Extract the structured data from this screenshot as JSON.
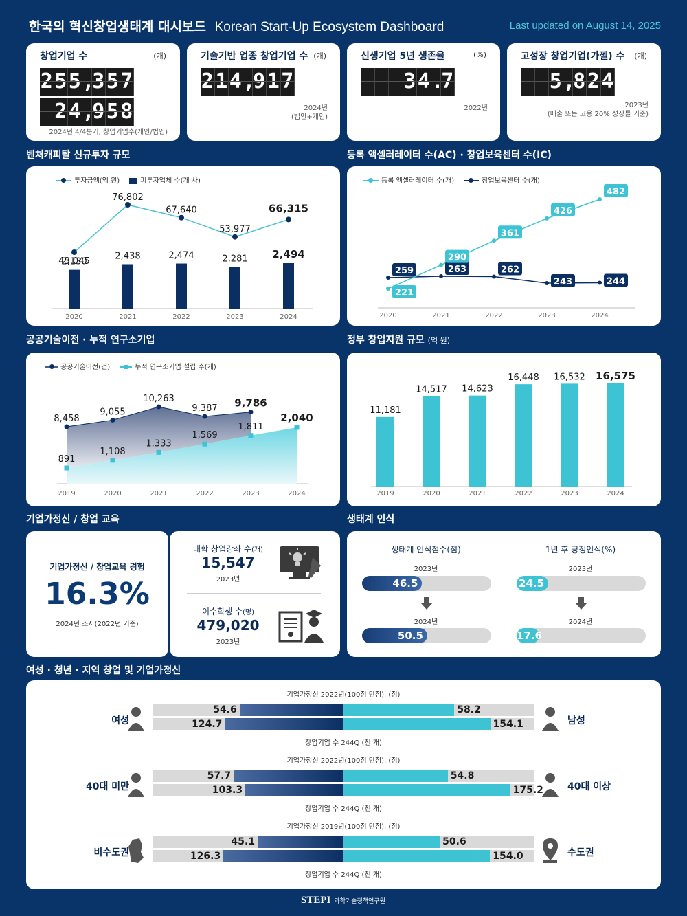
{
  "header": {
    "title_ko": "한국의 혁신창업생태계 대시보드",
    "title_en": "Korean Start-Up Ecosystem Dashboard",
    "updated": "Last updated on August 14, 2025"
  },
  "kpis": [
    {
      "title": "창업기업 수",
      "unit": "(개)",
      "value1": "255,357",
      "value2": "24,958",
      "note": "2024년 4/4분기, 창업기업수(개인/법인)"
    },
    {
      "title": "기술기반 업종 창업기업 수",
      "unit": "(개)",
      "value1": "214,917",
      "note": "2024년\n(법인+개인)"
    },
    {
      "title": "신생기업 5년 생존율",
      "unit": "(%)",
      "value1": "34.7",
      "note": "2022년"
    },
    {
      "title": "고성장 창업기업(가젤) 수",
      "unit": "(개)",
      "value1": "5,824",
      "note": "2023년\n(매출 또는 고용 20% 성장률 기준)"
    }
  ],
  "sections": {
    "vc": "벤처캐피탈 신규투자 규모",
    "ac": "등록 액셀러레이터 수(AC) · 창업보육센터 수(IC)",
    "tech": "공공기술이전 · 누적 연구소기업",
    "gov": "정부 창업지원 규모",
    "gov_unit": "(억 원)",
    "edu": "기업가정신 / 창업 교육",
    "eco": "생태계 인식",
    "demo": "여성 · 청년 · 지역 창업 및 기업가정신"
  },
  "chart_data": [
    {
      "id": "vc",
      "type": "bar",
      "categories": [
        "2020",
        "2021",
        "2022",
        "2023",
        "2024"
      ],
      "series": [
        {
          "name": "투자금액(억 원)",
          "type": "line",
          "values": [
            43045,
            76802,
            67640,
            53977,
            66315
          ]
        },
        {
          "name": "피투자업체 수(개 사)",
          "type": "bar",
          "values": [
            2130,
            2438,
            2474,
            2281,
            2494
          ]
        }
      ],
      "legend": "top-left"
    },
    {
      "id": "ac",
      "type": "line",
      "categories": [
        "2020",
        "2021",
        "2022",
        "2023",
        "2024"
      ],
      "series": [
        {
          "name": "등록 액셀러레이터 수(개)",
          "values": [
            221,
            290,
            361,
            426,
            482
          ]
        },
        {
          "name": "창업보육센터 수(개)",
          "values": [
            259,
            263,
            262,
            243,
            244
          ]
        }
      ],
      "legend": "top-left"
    },
    {
      "id": "tech",
      "type": "area",
      "categories": [
        "2019",
        "2020",
        "2021",
        "2022",
        "2023",
        "2024"
      ],
      "series": [
        {
          "name": "공공기술이전(건)",
          "values": [
            8458,
            9055,
            10263,
            9387,
            9786,
            null
          ]
        },
        {
          "name": "누적 연구소기업 설립 수(개)",
          "values": [
            891,
            1108,
            1333,
            1569,
            1811,
            2040
          ]
        }
      ],
      "legend": "top-left"
    },
    {
      "id": "gov",
      "type": "bar",
      "categories": [
        "2019",
        "2020",
        "2021",
        "2022",
        "2023",
        "2024"
      ],
      "values": [
        11181,
        14517,
        14623,
        16448,
        16532,
        16575
      ]
    }
  ],
  "edu": {
    "exp_label": "기업가정신 / 창업교육 경험",
    "exp_value": "16.3%",
    "exp_note": "2024년 조사(2022년 기준)",
    "course_label": "대학 창업강좌 수",
    "course_unit": "(개)",
    "course_value": "15,547",
    "course_year": "2023년",
    "student_label": "이수학생 수",
    "student_unit": "(명)",
    "student_value": "479,020",
    "student_year": "2023년"
  },
  "eco": {
    "score_title": "생태계 인식점수(점)",
    "pos_title": "1년 후 긍정인식(%)",
    "year1": "2023년",
    "year2": "2024년",
    "score": [
      {
        "value": "46.5",
        "level": 0.465
      },
      {
        "value": "50.5",
        "level": 0.505
      }
    ],
    "pos": [
      {
        "value": "24.5",
        "level": 0.245
      },
      {
        "value": "17.6",
        "level": 0.176
      }
    ]
  },
  "demo": [
    {
      "cap1": "기업가정신 2022년(100점 만점), (점)",
      "cap2": "창업기업 수 244Q (천 개)",
      "left_label": "여성",
      "right_label": "남성",
      "left": [
        "54.6",
        "124.7"
      ],
      "right": [
        "58.2",
        "154.1"
      ],
      "left_level": [
        0.546,
        0.624
      ],
      "right_level": [
        0.582,
        0.771
      ]
    },
    {
      "cap1": "기업가정신 2022년(100점 만점), (점)",
      "cap2": "창업기업 수 244Q (천 개)",
      "left_label": "40대 미만",
      "right_label": "40대 이상",
      "left": [
        "57.7",
        "103.3"
      ],
      "right": [
        "54.8",
        "175.2"
      ],
      "left_level": [
        0.577,
        0.517
      ],
      "right_level": [
        0.548,
        0.876
      ]
    },
    {
      "cap1": "기업가정신 2019년(100점 만점), (점)",
      "cap2": "창업기업 수 244Q (천 개)",
      "left_label": "비수도권",
      "right_label": "수도권",
      "left": [
        "45.1",
        "126.3"
      ],
      "right": [
        "50.6",
        "154.0"
      ],
      "left_level": [
        0.451,
        0.632
      ],
      "right_level": [
        0.506,
        0.77
      ]
    }
  ],
  "footer": {
    "logo": "STEPI",
    "org": "과학기술정책연구원"
  },
  "colors": {
    "navy": "#08346a",
    "dark_bar": "#0b2f63",
    "teal": "#3ec3d5",
    "teal_light": "#6fd7e4"
  }
}
